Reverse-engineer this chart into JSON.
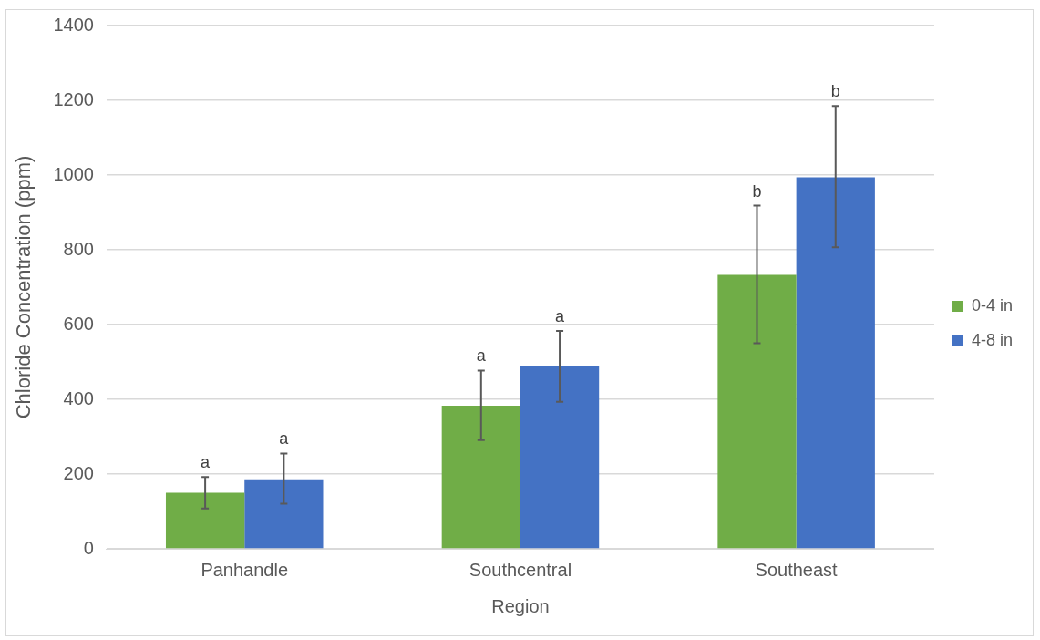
{
  "chart_data": {
    "type": "bar",
    "xlabel": "Region",
    "ylabel": "Chloride Concentration (ppm)",
    "categories": [
      "Panhandle",
      "Southcentral",
      "Southeast"
    ],
    "series": [
      {
        "name": "0-4 in",
        "color": "#70ad47",
        "values": [
          150,
          383,
          733
        ],
        "errors": [
          [
            108,
            192
          ],
          [
            291,
            477
          ],
          [
            550,
            918
          ]
        ]
      },
      {
        "name": "4-8 in",
        "color": "#4472c4",
        "values": [
          186,
          488,
          994
        ],
        "errors": [
          [
            121,
            255
          ],
          [
            393,
            583
          ],
          [
            807,
            1185
          ]
        ]
      }
    ],
    "ylim": [
      0,
      1400
    ],
    "yticks": [
      0,
      200,
      400,
      600,
      800,
      1000,
      1200,
      1400
    ],
    "grid": "y",
    "legend": "right",
    "annotations": [
      "a",
      "a",
      "a",
      "a",
      "b",
      "b"
    ]
  }
}
